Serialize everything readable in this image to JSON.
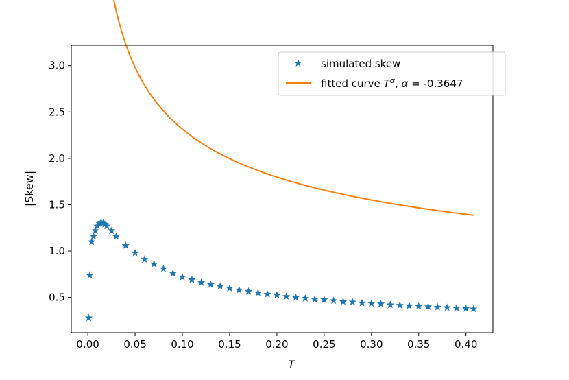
{
  "chart_data": {
    "type": "scatter",
    "title": "",
    "xlabel": "T",
    "ylabel": "|Skew|",
    "xlim": [
      -0.0175,
      0.4285
    ],
    "ylim": [
      0.12,
      3.22
    ],
    "xticks": [
      0.0,
      0.05,
      0.1,
      0.15,
      0.2,
      0.25,
      0.3,
      0.35,
      0.4
    ],
    "xtick_labels": [
      "0.00",
      "0.05",
      "0.10",
      "0.15",
      "0.20",
      "0.25",
      "0.30",
      "0.35",
      "0.40"
    ],
    "yticks": [
      0.5,
      1.0,
      1.5,
      2.0,
      2.5,
      3.0
    ],
    "ytick_labels": [
      "0.5",
      "1.0",
      "1.5",
      "2.0",
      "2.5",
      "3.0"
    ],
    "grid": false,
    "legend_position": "top-right",
    "series": [
      {
        "name": "simulated skew",
        "kind": "scatter",
        "marker": "star",
        "color": "#1f77b4",
        "points": [
          [
            0.001,
            0.28
          ],
          [
            0.002,
            0.74
          ],
          [
            0.004,
            1.1
          ],
          [
            0.006,
            1.16
          ],
          [
            0.008,
            1.22
          ],
          [
            0.01,
            1.27
          ],
          [
            0.012,
            1.3
          ],
          [
            0.014,
            1.31
          ],
          [
            0.016,
            1.3
          ],
          [
            0.018,
            1.29
          ],
          [
            0.02,
            1.27
          ],
          [
            0.025,
            1.22
          ],
          [
            0.03,
            1.16
          ],
          [
            0.04,
            1.06
          ],
          [
            0.05,
            0.98
          ],
          [
            0.06,
            0.91
          ],
          [
            0.07,
            0.86
          ],
          [
            0.08,
            0.81
          ],
          [
            0.09,
            0.76
          ],
          [
            0.1,
            0.72
          ],
          [
            0.11,
            0.69
          ],
          [
            0.12,
            0.66
          ],
          [
            0.13,
            0.64
          ],
          [
            0.14,
            0.62
          ],
          [
            0.15,
            0.6
          ],
          [
            0.16,
            0.58
          ],
          [
            0.17,
            0.565
          ],
          [
            0.18,
            0.55
          ],
          [
            0.19,
            0.535
          ],
          [
            0.2,
            0.525
          ],
          [
            0.21,
            0.51
          ],
          [
            0.22,
            0.5
          ],
          [
            0.23,
            0.49
          ],
          [
            0.24,
            0.48
          ],
          [
            0.25,
            0.475
          ],
          [
            0.26,
            0.465
          ],
          [
            0.27,
            0.455
          ],
          [
            0.28,
            0.45
          ],
          [
            0.29,
            0.44
          ],
          [
            0.3,
            0.435
          ],
          [
            0.31,
            0.43
          ],
          [
            0.32,
            0.42
          ],
          [
            0.33,
            0.415
          ],
          [
            0.34,
            0.41
          ],
          [
            0.35,
            0.405
          ],
          [
            0.36,
            0.4
          ],
          [
            0.37,
            0.395
          ],
          [
            0.38,
            0.39
          ],
          [
            0.39,
            0.385
          ],
          [
            0.4,
            0.38
          ],
          [
            0.408,
            0.375
          ]
        ]
      },
      {
        "name": "fitted curve T^α, α = -0.3647",
        "kind": "line",
        "color": "#ff7f0e",
        "alpha": -0.3647,
        "x_range": [
          0.002,
          0.408
        ]
      }
    ]
  },
  "legend": {
    "scatter_label": "simulated skew",
    "line_label_prefix": "fitted curve ",
    "line_label_T": "T",
    "line_label_exp": "α",
    "line_label_sep": ", ",
    "line_label_alpha": "α",
    "line_label_eq": " = ",
    "line_label_value": "-0.3647"
  }
}
